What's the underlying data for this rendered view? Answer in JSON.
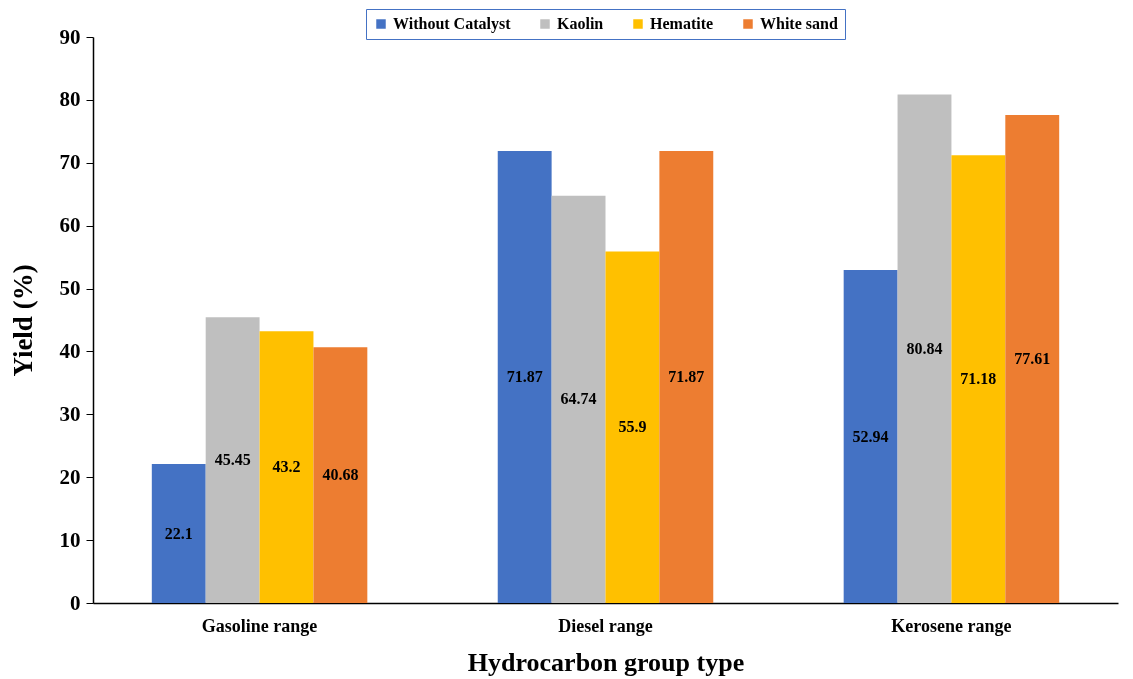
{
  "chart_data": {
    "type": "bar",
    "xlabel": "Hydrocarbon group type",
    "ylabel": "Yield (%)",
    "categories": [
      "Gasoline range",
      "Diesel range",
      "Kerosene range"
    ],
    "series": [
      {
        "name": "Without Catalyst",
        "color": "#4472c4",
        "values": [
          22.1,
          71.87,
          52.94
        ]
      },
      {
        "name": "Kaolin",
        "color": "#bfbfbf",
        "values": [
          45.45,
          64.74,
          80.84
        ]
      },
      {
        "name": "Hematite",
        "color": "#ffc000",
        "values": [
          43.2,
          55.9,
          71.18
        ]
      },
      {
        "name": "White sand",
        "color": "#ed7d31",
        "values": [
          40.68,
          71.87,
          77.61
        ]
      }
    ],
    "ylim": [
      0,
      90
    ],
    "yticks": [
      0,
      10,
      20,
      30,
      40,
      50,
      60,
      70,
      80,
      90
    ],
    "data_labels": true,
    "legend": "top"
  }
}
